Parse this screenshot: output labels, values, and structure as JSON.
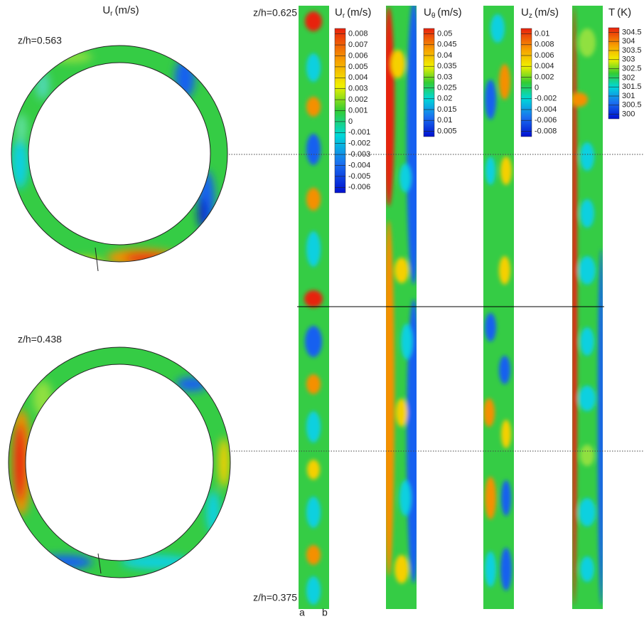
{
  "left_panel": {
    "title": {
      "symbol": "U",
      "sub": "r",
      "unit": "(m/s)"
    },
    "sections": [
      {
        "label": "z/h=0.563"
      },
      {
        "label": "z/h=0.438"
      }
    ]
  },
  "strips": {
    "top_label": "z/h=0.625",
    "bottom_label": "z/h=0.375",
    "edge_labels": [
      "a",
      "b"
    ]
  },
  "colorbars": [
    {
      "title": {
        "symbol": "U",
        "sub": "r",
        "unit": "(m/s)"
      },
      "labels": [
        "0.008",
        "0.007",
        "0.006",
        "0.005",
        "0.004",
        "0.003",
        "0.002",
        "0.001",
        "0",
        "-0.001",
        "-0.002",
        "-0.003",
        "-0.004",
        "-0.005",
        "-0.006"
      ]
    },
    {
      "title": {
        "symbol": "U",
        "sub": "θ",
        "unit": "(m/s)"
      },
      "labels": [
        "0.05",
        "0.045",
        "0.04",
        "0.035",
        "0.03",
        "0.025",
        "0.02",
        "0.015",
        "0.01",
        "0.005"
      ]
    },
    {
      "title": {
        "symbol": "U",
        "sub": "z",
        "unit": "(m/s)"
      },
      "labels": [
        "0.01",
        "0.008",
        "0.006",
        "0.004",
        "0.002",
        "0",
        "-0.002",
        "-0.004",
        "-0.006",
        "-0.008"
      ]
    },
    {
      "title": {
        "symbol": "T",
        "unit": "(K)"
      },
      "labels": [
        "304.5",
        "304",
        "303.5",
        "303",
        "302.5",
        "302",
        "301.5",
        "301",
        "300.5",
        "300"
      ]
    }
  ]
}
